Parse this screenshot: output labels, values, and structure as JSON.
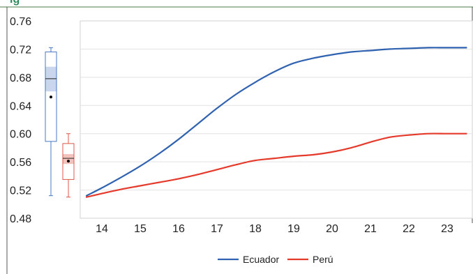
{
  "header_fragment": "ig",
  "chart_data": {
    "type": "line",
    "title": "",
    "xlabel": "",
    "ylabel": "",
    "xlim": [
      13.5,
      23.5
    ],
    "ylim": [
      0.48,
      0.76
    ],
    "x_ticks": [
      14,
      15,
      16,
      17,
      18,
      19,
      20,
      21,
      22,
      23
    ],
    "y_ticks": [
      0.48,
      0.52,
      0.56,
      0.6,
      0.64,
      0.68,
      0.72,
      0.76
    ],
    "x_tick_labels": [
      "14",
      "15",
      "16",
      "17",
      "18",
      "19",
      "20",
      "21",
      "22",
      "23"
    ],
    "y_tick_labels": [
      "0.48",
      "0.52",
      "0.56",
      "0.60",
      "0.64",
      "0.68",
      "0.72",
      "0.76"
    ],
    "grid": "horizontal",
    "legend_position": "bottom",
    "series": [
      {
        "name": "Ecuador",
        "color": "#2f62b0",
        "x": [
          13.6,
          14,
          14.5,
          15,
          15.5,
          16,
          16.5,
          17,
          17.5,
          18,
          18.5,
          19,
          19.5,
          20,
          20.5,
          21,
          21.5,
          22,
          22.5,
          23,
          23.5
        ],
        "y": [
          0.512,
          0.523,
          0.538,
          0.554,
          0.572,
          0.592,
          0.614,
          0.636,
          0.656,
          0.673,
          0.688,
          0.7,
          0.707,
          0.712,
          0.716,
          0.718,
          0.72,
          0.721,
          0.722,
          0.722,
          0.722
        ]
      },
      {
        "name": "Perú",
        "color": "#e53a2b",
        "x": [
          13.6,
          14,
          14.5,
          15,
          15.5,
          16,
          16.5,
          17,
          17.5,
          18,
          18.5,
          19,
          19.5,
          20,
          20.5,
          21,
          21.5,
          22,
          22.5,
          23,
          23.5
        ],
        "y": [
          0.51,
          0.515,
          0.521,
          0.526,
          0.531,
          0.536,
          0.542,
          0.549,
          0.556,
          0.562,
          0.565,
          0.568,
          0.57,
          0.574,
          0.58,
          0.588,
          0.595,
          0.598,
          0.6,
          0.6,
          0.6
        ]
      }
    ],
    "boxplots": [
      {
        "name": "Ecuador",
        "stroke": "#4a78c4",
        "fill": "#c9d6ee",
        "min": 0.512,
        "q1": 0.589,
        "median": 0.678,
        "q3": 0.716,
        "max": 0.722,
        "notch_low": 0.66,
        "notch_high": 0.695,
        "mean": 0.652
      },
      {
        "name": "Perú",
        "stroke": "#e0584a",
        "fill": "#f4c2bc",
        "min": 0.51,
        "q1": 0.535,
        "median": 0.565,
        "q3": 0.586,
        "max": 0.6,
        "notch_low": 0.557,
        "notch_high": 0.571,
        "mean": 0.561
      }
    ]
  }
}
